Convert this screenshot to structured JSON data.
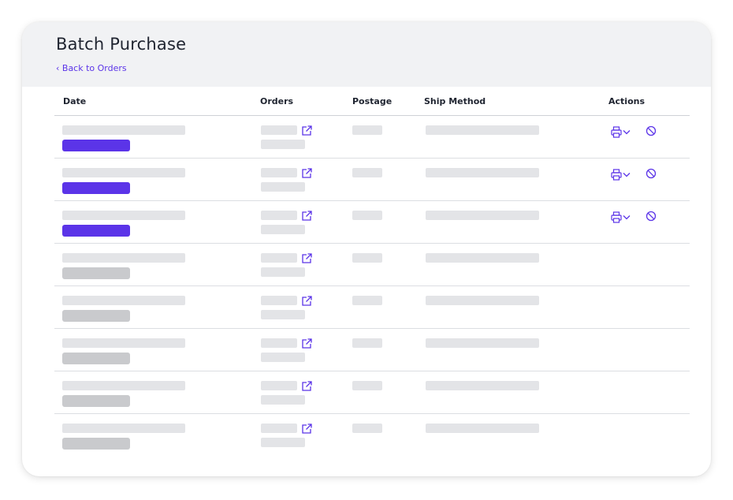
{
  "header": {
    "title": "Batch Purchase",
    "back_link": "‹ Back to Orders"
  },
  "table": {
    "columns": [
      "Date",
      "Orders",
      "Postage",
      "Ship Method",
      "Actions"
    ],
    "rows": [
      {
        "status": "active",
        "actions": [
          "printer-dropdown-icon",
          "cancel-icon"
        ]
      },
      {
        "status": "active",
        "actions": [
          "printer-dropdown-icon",
          "cancel-icon"
        ]
      },
      {
        "status": "active",
        "actions": [
          "printer-dropdown-icon",
          "cancel-icon"
        ]
      },
      {
        "status": "inactive",
        "actions": []
      },
      {
        "status": "inactive",
        "actions": []
      },
      {
        "status": "inactive",
        "actions": []
      },
      {
        "status": "inactive",
        "actions": []
      },
      {
        "status": "inactive",
        "actions": []
      }
    ]
  },
  "colors": {
    "accent": "#5b34e8",
    "header_bg": "#f1f2f4",
    "placeholder": "#e3e4e7",
    "inactive_badge": "#c9cacd"
  },
  "icons": {
    "orders_link": "external-link-icon",
    "print": "printer-dropdown-icon",
    "cancel": "cancel-icon"
  }
}
